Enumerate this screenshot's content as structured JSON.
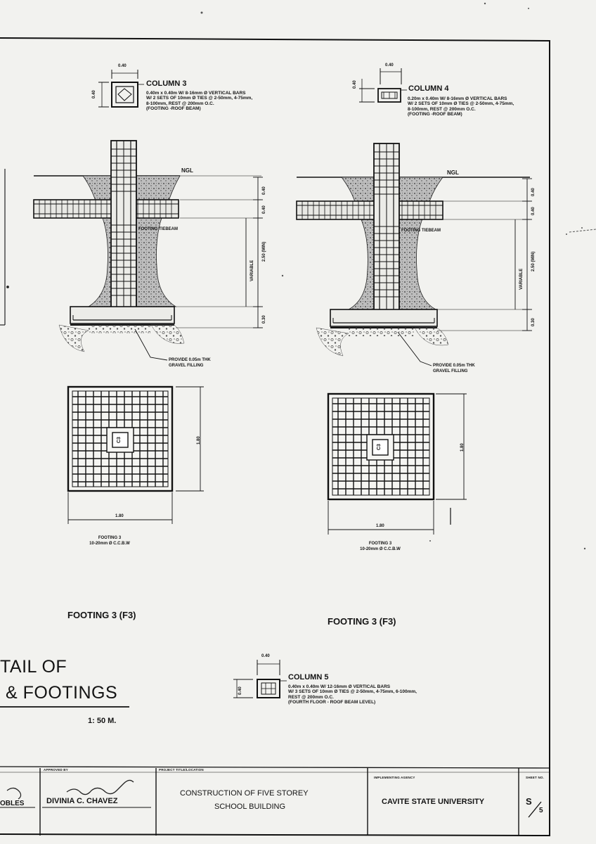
{
  "column3": {
    "size_label": "0.40",
    "title": "COLUMN 3",
    "spec_lines": [
      "0.40m x 0.40m W/ 8-16mm Ø VERTICAL BARS",
      "W/ 2 SETS OF 10mm Ø TIES @ 2-50mm, 4-75mm,",
      "8-100mm, REST @ 200mm O.C.",
      "(FOOTING -ROOF BEAM)"
    ]
  },
  "column4": {
    "size_label": "0.40",
    "title": "COLUMN 4",
    "spec_lines": [
      "0.20m x 0.40m W/ 8-16mm Ø VERTICAL BARS",
      "W/ 2 SETS OF 10mm Ø TIES @ 2-50mm, 4-75mm,",
      "8-100mm, REST @ 200mm O.C.",
      "(FOOTING -ROOF BEAM)"
    ]
  },
  "column5": {
    "size_label": "0.40",
    "title": "COLUMN 5",
    "spec_lines": [
      "0.40m x 0.40m W/ 12-16mm Ø VERTICAL BARS",
      "W/ 3 SETS OF 10mm Ø TIES @ 2-50mm, 4-75mm, 6-100mm,",
      "REST @ 200mm O.C.",
      "(FOURTH FLOOR - ROOF BEAM LEVEL)"
    ]
  },
  "section_labels": {
    "ngl": "NGL",
    "tie_beam": "FOOTING TIEBEAM",
    "variable": "VARIABLE",
    "dim_040": "0.40",
    "dim_250": "2.50 (MIN)",
    "dim_030": "0.30",
    "gravel_note": [
      "PROVIDE 0.05m THK",
      "GRAVEL FILLING"
    ],
    "col_mark": "C3"
  },
  "plans": {
    "dim_180": "1.80",
    "footing_name": "FOOTING 3",
    "footing_bars": "10-20mm Ø C.C.B.W"
  },
  "footing_titles": [
    "FOOTING 3 (F3)",
    "FOOTING 3 (F3)"
  ],
  "drawing_title": [
    "TAIL OF",
    "& FOOTINGS"
  ],
  "scale": "1: 50 M.",
  "title_block": {
    "approved_by_heading": "APPROVED BY",
    "left_name": "OBLES",
    "approver_name": "DIVINIA C. CHAVEZ",
    "project_heading": "PROJECT TITLE/LOCATION",
    "project_line1": "CONSTRUCTION OF FIVE STOREY",
    "project_line2": "SCHOOL BUILDING",
    "agency_heading": "IMPLEMENTING AGENCY",
    "agency": "CAVITE STATE UNIVERSITY",
    "sheet_heading": "SHEET NO.",
    "sheet_num": "S",
    "sheet_total": "5"
  }
}
